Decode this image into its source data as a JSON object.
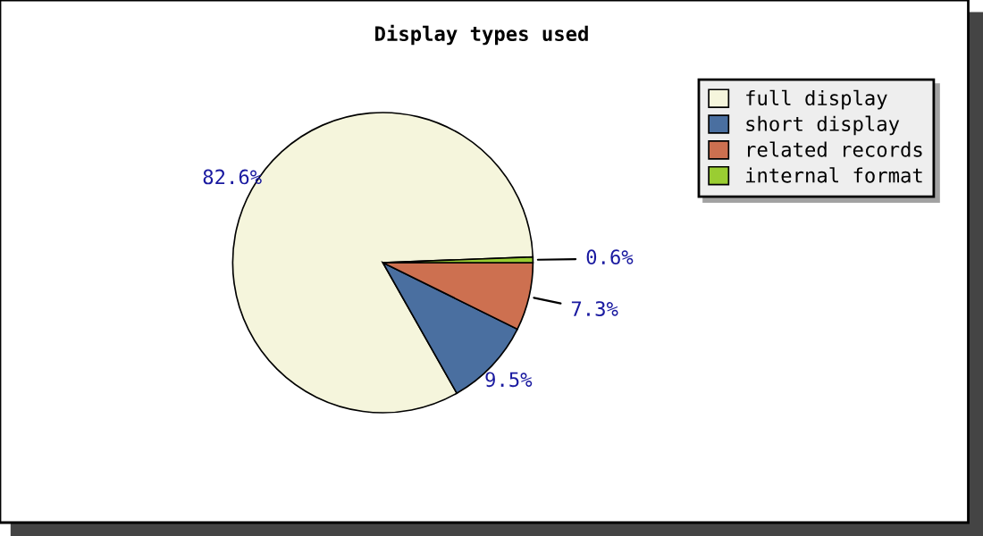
{
  "chart_data": {
    "type": "pie",
    "title": "Display types used",
    "categories": [
      "full display",
      "short display",
      "related records",
      "internal format"
    ],
    "values": [
      82.6,
      9.5,
      7.3,
      0.6
    ],
    "colors": [
      "#f5f5dc",
      "#4a6fa0",
      "#cd7050",
      "#9acd32"
    ],
    "value_labels": [
      "82.6%",
      "9.5%",
      "7.3%",
      "0.6%"
    ],
    "legend": "top right"
  }
}
